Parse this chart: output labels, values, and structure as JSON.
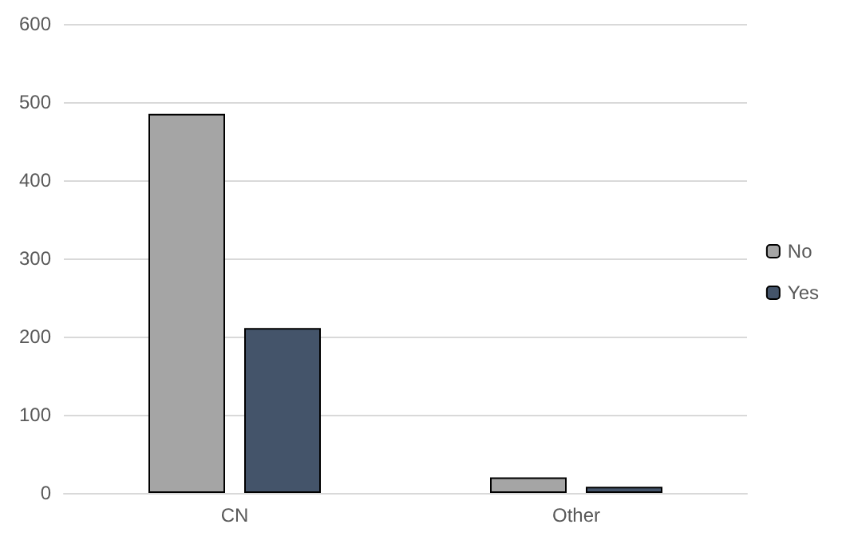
{
  "chart_data": {
    "type": "bar",
    "categories": [
      "CN",
      "Other"
    ],
    "series": [
      {
        "name": "No",
        "color": "#a5a5a5",
        "values": [
          485,
          20
        ]
      },
      {
        "name": "Yes",
        "color": "#44546a",
        "values": [
          211,
          8
        ]
      }
    ],
    "ylim": [
      0,
      600
    ],
    "yticks": [
      0,
      100,
      200,
      300,
      400,
      500,
      600
    ],
    "grid": "y",
    "legend": "right"
  }
}
